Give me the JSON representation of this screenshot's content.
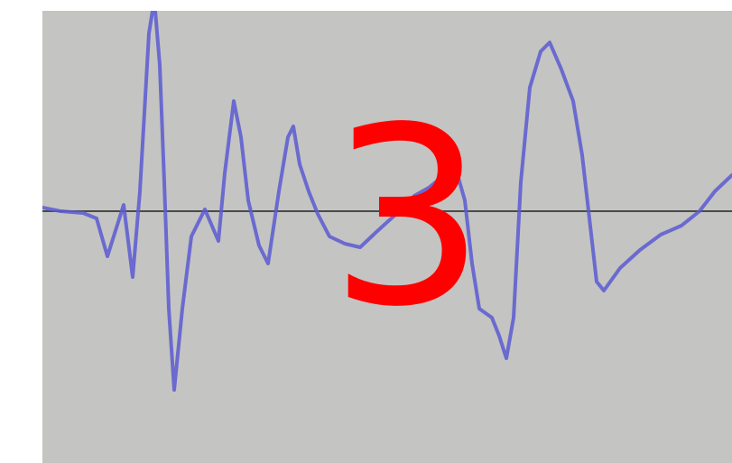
{
  "image": {
    "overlay_label": "3",
    "overlay_color": "#ff0000",
    "background_color": "#c4c4c2",
    "waveform_color": "#5a5ad2",
    "baseline_color": "#4a4a4a"
  }
}
